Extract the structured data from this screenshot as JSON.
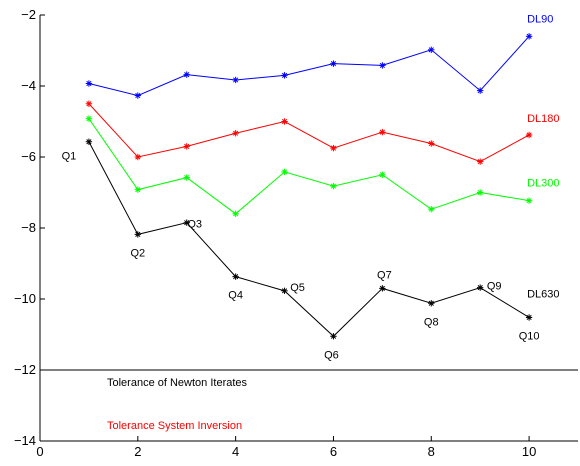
{
  "chart_data": {
    "type": "line",
    "title": "",
    "xlabel": "",
    "ylabel": "",
    "xlim": [
      0,
      11
    ],
    "ylim": [
      -14,
      -2
    ],
    "xticks": [
      0,
      2,
      4,
      6,
      8,
      10
    ],
    "yticks": [
      -14,
      -12,
      -10,
      -8,
      -6,
      -4,
      -2
    ],
    "x": [
      1,
      2,
      3,
      4,
      5,
      6,
      7,
      8,
      9,
      10
    ],
    "series": [
      {
        "name": "DL90",
        "color": "#0000ff",
        "values": [
          -3.93,
          -4.27,
          -3.68,
          -3.83,
          -3.7,
          -3.37,
          -3.42,
          -2.98,
          -4.13,
          -2.6
        ]
      },
      {
        "name": "DL180",
        "color": "#ff0000",
        "values": [
          -4.5,
          -6.0,
          -5.7,
          -5.33,
          -5.0,
          -5.75,
          -5.3,
          -5.62,
          -6.13,
          -5.38
        ]
      },
      {
        "name": "DL300",
        "color": "#00ff00",
        "values": [
          -4.92,
          -6.92,
          -6.58,
          -7.6,
          -6.42,
          -6.82,
          -6.5,
          -7.47,
          -7.0,
          -7.23
        ]
      },
      {
        "name": "DL630",
        "color": "#000000",
        "values": [
          -5.57,
          -8.18,
          -7.85,
          -9.37,
          -9.77,
          -11.05,
          -9.7,
          -10.12,
          -9.68,
          -10.52
        ]
      }
    ],
    "point_labels": [
      "Q1",
      "Q2",
      "Q3",
      "Q4",
      "Q5",
      "Q6",
      "Q7",
      "Q8",
      "Q9",
      "Q10"
    ],
    "reference_lines": [
      {
        "y": -12,
        "color": "#000000",
        "label": "Tolerance of Newton Iterates"
      },
      {
        "y": -14,
        "color": "#ff0000",
        "label": "Tolerance System Inversion"
      }
    ],
    "grid": false
  }
}
